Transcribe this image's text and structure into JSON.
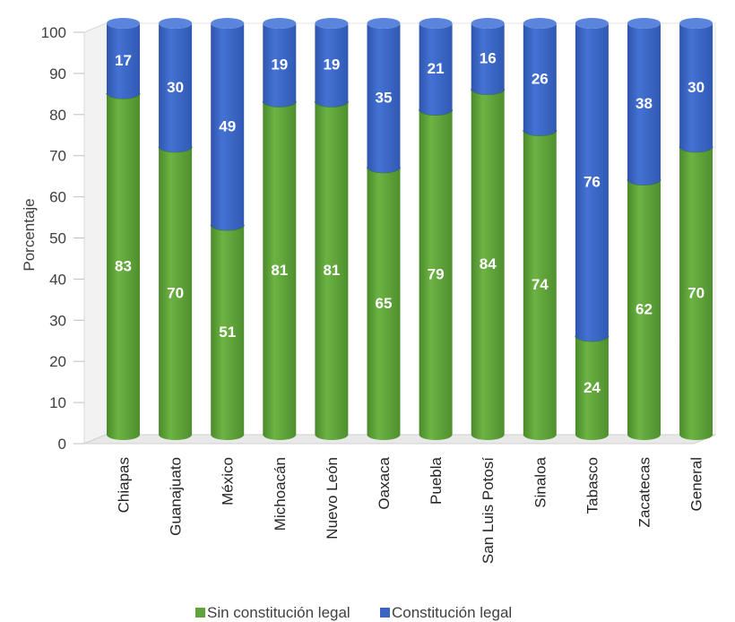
{
  "chart_data": {
    "type": "bar",
    "stacked": true,
    "style": "3d-cylinder",
    "title": "",
    "xlabel": "",
    "ylabel": "Porcentaje",
    "ylim": [
      0,
      100
    ],
    "yticks": [
      0,
      10,
      20,
      30,
      40,
      50,
      60,
      70,
      80,
      90,
      100
    ],
    "grid": false,
    "legend_position": "bottom",
    "categories": [
      "Chiapas",
      "Guanajuato",
      "México",
      "Michoacán",
      "Nuevo León",
      "Oaxaca",
      "Puebla",
      "San Luis Potosí",
      "Sinaloa",
      "Tabasco",
      "Zacatecas",
      "General"
    ],
    "series": [
      {
        "name": "Sin constitución legal",
        "color": "#5fa33a",
        "values": [
          83,
          70,
          51,
          81,
          81,
          65,
          79,
          84,
          74,
          24,
          62,
          70
        ]
      },
      {
        "name": "Constitución legal",
        "color": "#3b65c4",
        "values": [
          17,
          30,
          49,
          19,
          19,
          35,
          21,
          16,
          26,
          76,
          38,
          30
        ]
      }
    ]
  }
}
